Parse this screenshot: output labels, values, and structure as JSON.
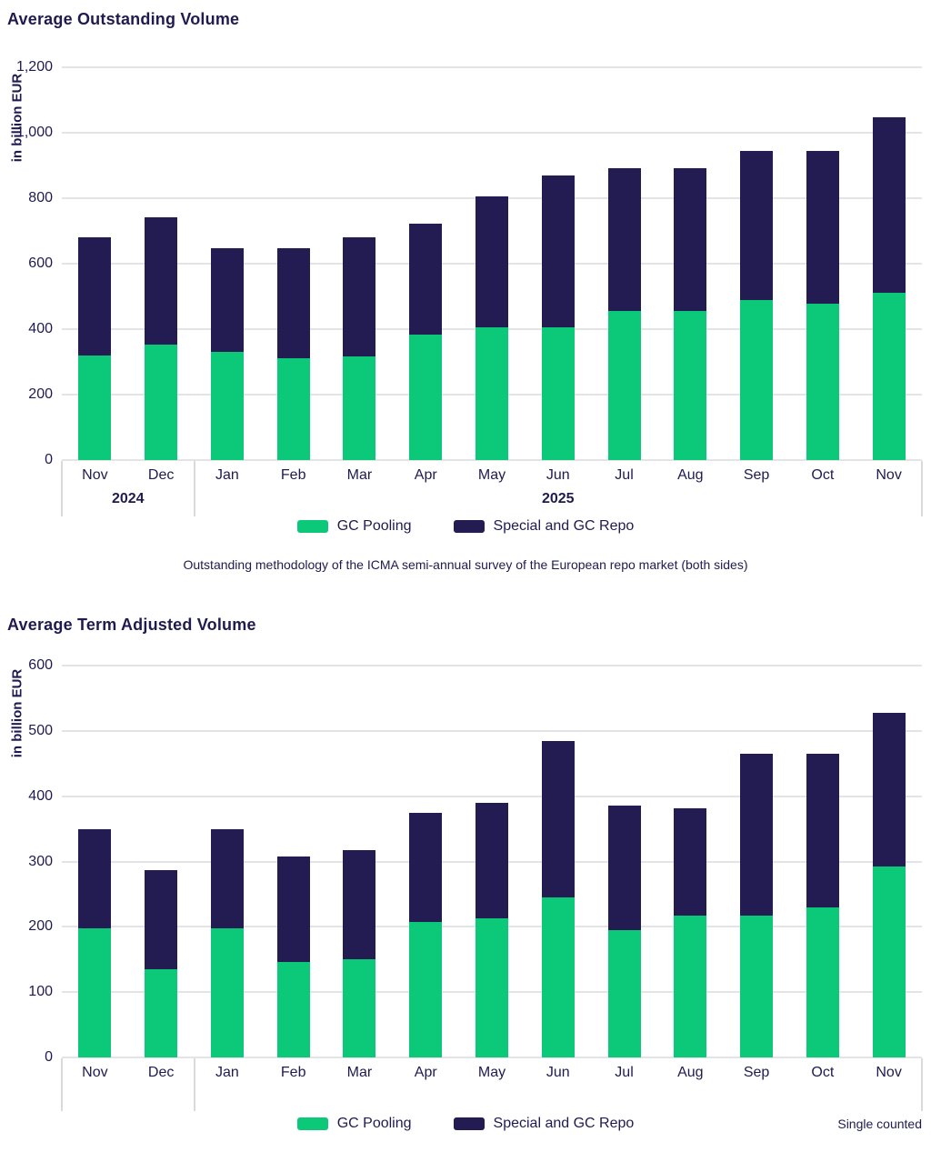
{
  "colors": {
    "green": "#0cc97a",
    "navy": "#221c52",
    "text": "#1f1b50",
    "gridline": "#e4e4e6",
    "band_separator": "#dadadd"
  },
  "chart_data": [
    {
      "type": "bar",
      "stacked": true,
      "title": "Average Outstanding Volume",
      "ylabel": "in billion EUR",
      "xlabel": "",
      "ylim": [
        0,
        1200
      ],
      "ytick_step": 200,
      "grid": true,
      "legend_position": "bottom-center",
      "categories": [
        "Nov",
        "Dec",
        "Jan",
        "Feb",
        "Mar",
        "Apr",
        "May",
        "Jun",
        "Jul",
        "Aug",
        "Sep",
        "Oct",
        "Nov"
      ],
      "year_groups": [
        {
          "label": "2024",
          "span": 2
        },
        {
          "label": "2025",
          "span": 11
        }
      ],
      "series": [
        {
          "name": "GC Pooling",
          "color": "#0cc97a",
          "values": [
            320,
            353,
            330,
            311,
            318,
            383,
            405,
            406,
            456,
            456,
            489,
            478,
            510
          ]
        },
        {
          "name": "Special and GC Repo",
          "color": "#221c52",
          "values": [
            360,
            389,
            318,
            337,
            362,
            339,
            401,
            464,
            435,
            435,
            455,
            466,
            538
          ]
        }
      ],
      "totals": [
        680,
        742,
        648,
        648,
        680,
        722,
        806,
        870,
        891,
        891,
        944,
        944,
        1048
      ],
      "footnote": "Outstanding methodology of the ICMA semi-annual survey of the European repo market (both sides)"
    },
    {
      "type": "bar",
      "stacked": true,
      "title": "Average Term Adjusted Volume",
      "ylabel": "in billion EUR",
      "xlabel": "",
      "ylim": [
        0,
        600
      ],
      "ytick_step": 100,
      "grid": true,
      "legend_position": "bottom-center",
      "categories": [
        "Nov",
        "Dec",
        "Jan",
        "Feb",
        "Mar",
        "Apr",
        "May",
        "Jun",
        "Jul",
        "Aug",
        "Sep",
        "Oct",
        "Nov"
      ],
      "year_groups": [],
      "series": [
        {
          "name": "GC Pooling",
          "color": "#0cc97a",
          "values": [
            197,
            135,
            197,
            146,
            151,
            208,
            213,
            245,
            195,
            217,
            217,
            230,
            292
          ]
        },
        {
          "name": "Special and GC Repo",
          "color": "#221c52",
          "values": [
            153,
            152,
            153,
            162,
            166,
            167,
            177,
            240,
            191,
            164,
            248,
            235,
            236
          ]
        }
      ],
      "totals": [
        350,
        287,
        350,
        308,
        317,
        375,
        390,
        485,
        386,
        381,
        465,
        465,
        528
      ],
      "note_right": "Single counted"
    }
  ]
}
